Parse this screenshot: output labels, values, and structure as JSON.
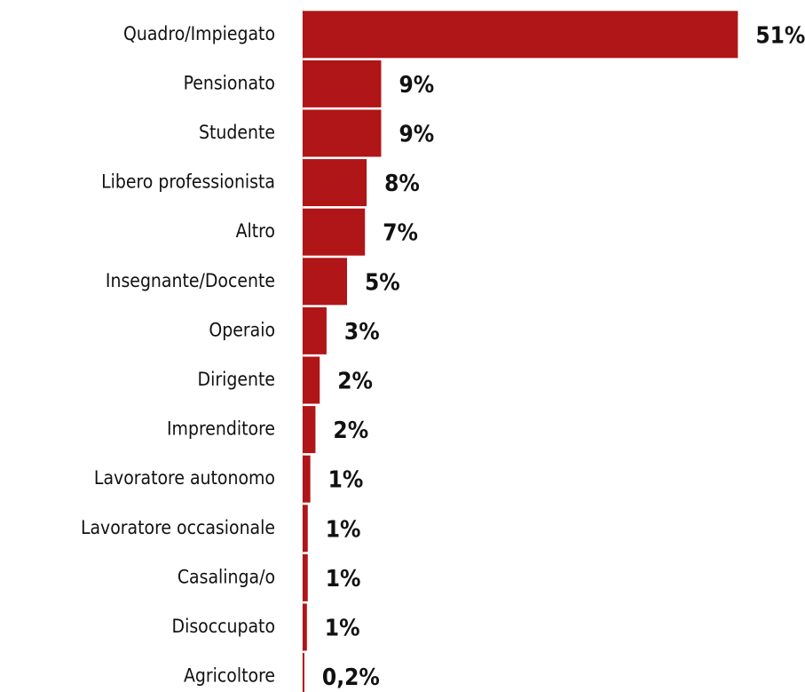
{
  "chart_data": {
    "type": "bar",
    "orientation": "horizontal",
    "categories": [
      "Quadro/Impiegato",
      "Pensionato",
      "Studente",
      "Libero professionista",
      "Altro",
      "Insegnante/Docente",
      "Operaio",
      "Dirigente",
      "Imprenditore",
      "Lavoratore autonomo",
      "Lavoratore occasionale",
      "Casalinga/o",
      "Disoccupato",
      "Agricoltore"
    ],
    "values": [
      51,
      9.2,
      9.2,
      7.5,
      7.3,
      5.2,
      2.8,
      2.0,
      1.5,
      0.9,
      0.6,
      0.6,
      0.5,
      0.2
    ],
    "value_labels": [
      "51%",
      "9%",
      "9%",
      "8%",
      "7%",
      "5%",
      "3%",
      "2%",
      "2%",
      "1%",
      "1%",
      "1%",
      "1%",
      "0,2%"
    ],
    "color": "#b01517",
    "xlim": [
      0,
      52
    ]
  }
}
